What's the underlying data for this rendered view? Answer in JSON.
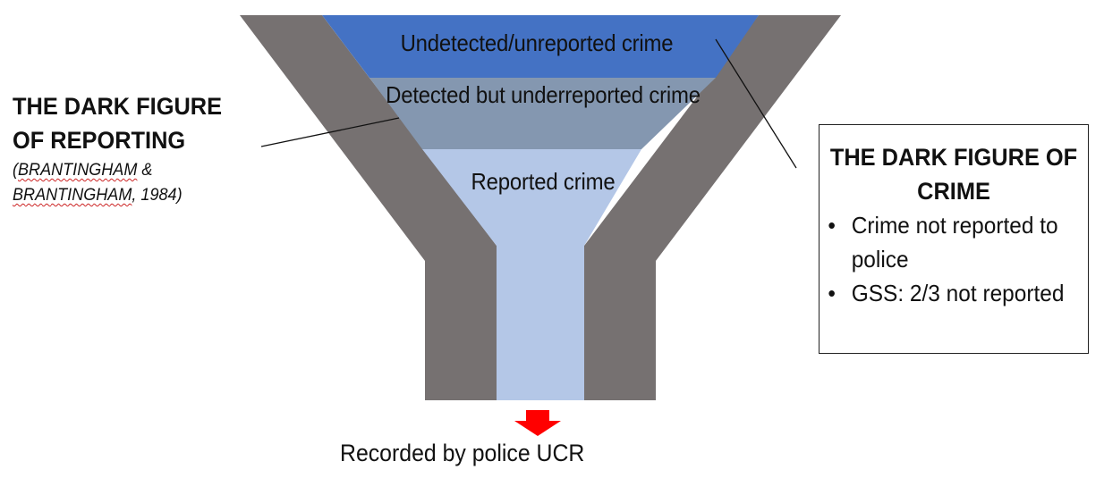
{
  "funnel": {
    "layers": [
      {
        "id": "undetected",
        "label": "Undetected/unreported crime",
        "color": "#4472C4"
      },
      {
        "id": "detected",
        "label": "Detected but underreported crime",
        "color": "#8497B0"
      },
      {
        "id": "reported",
        "label": "Reported crime",
        "color": "#B4C7E7"
      }
    ],
    "wall_color": "#767171",
    "output_label": "Recorded by police UCR",
    "arrow_color": "#FF0000"
  },
  "dark_figure_reporting": {
    "title": "THE DARK FIGURE OF REPORTING",
    "citation_open": "(",
    "citation_author1": "BRANTINGHAM",
    "citation_amp": " & ",
    "citation_author2": "BRANTINGHAM",
    "citation_year": ", 1984)"
  },
  "dark_figure_crime": {
    "title": "THE DARK FIGURE OF CRIME",
    "bullet_char": "•",
    "bullets": [
      "Crime not reported to police",
      "GSS: 2/3 not reported"
    ]
  }
}
